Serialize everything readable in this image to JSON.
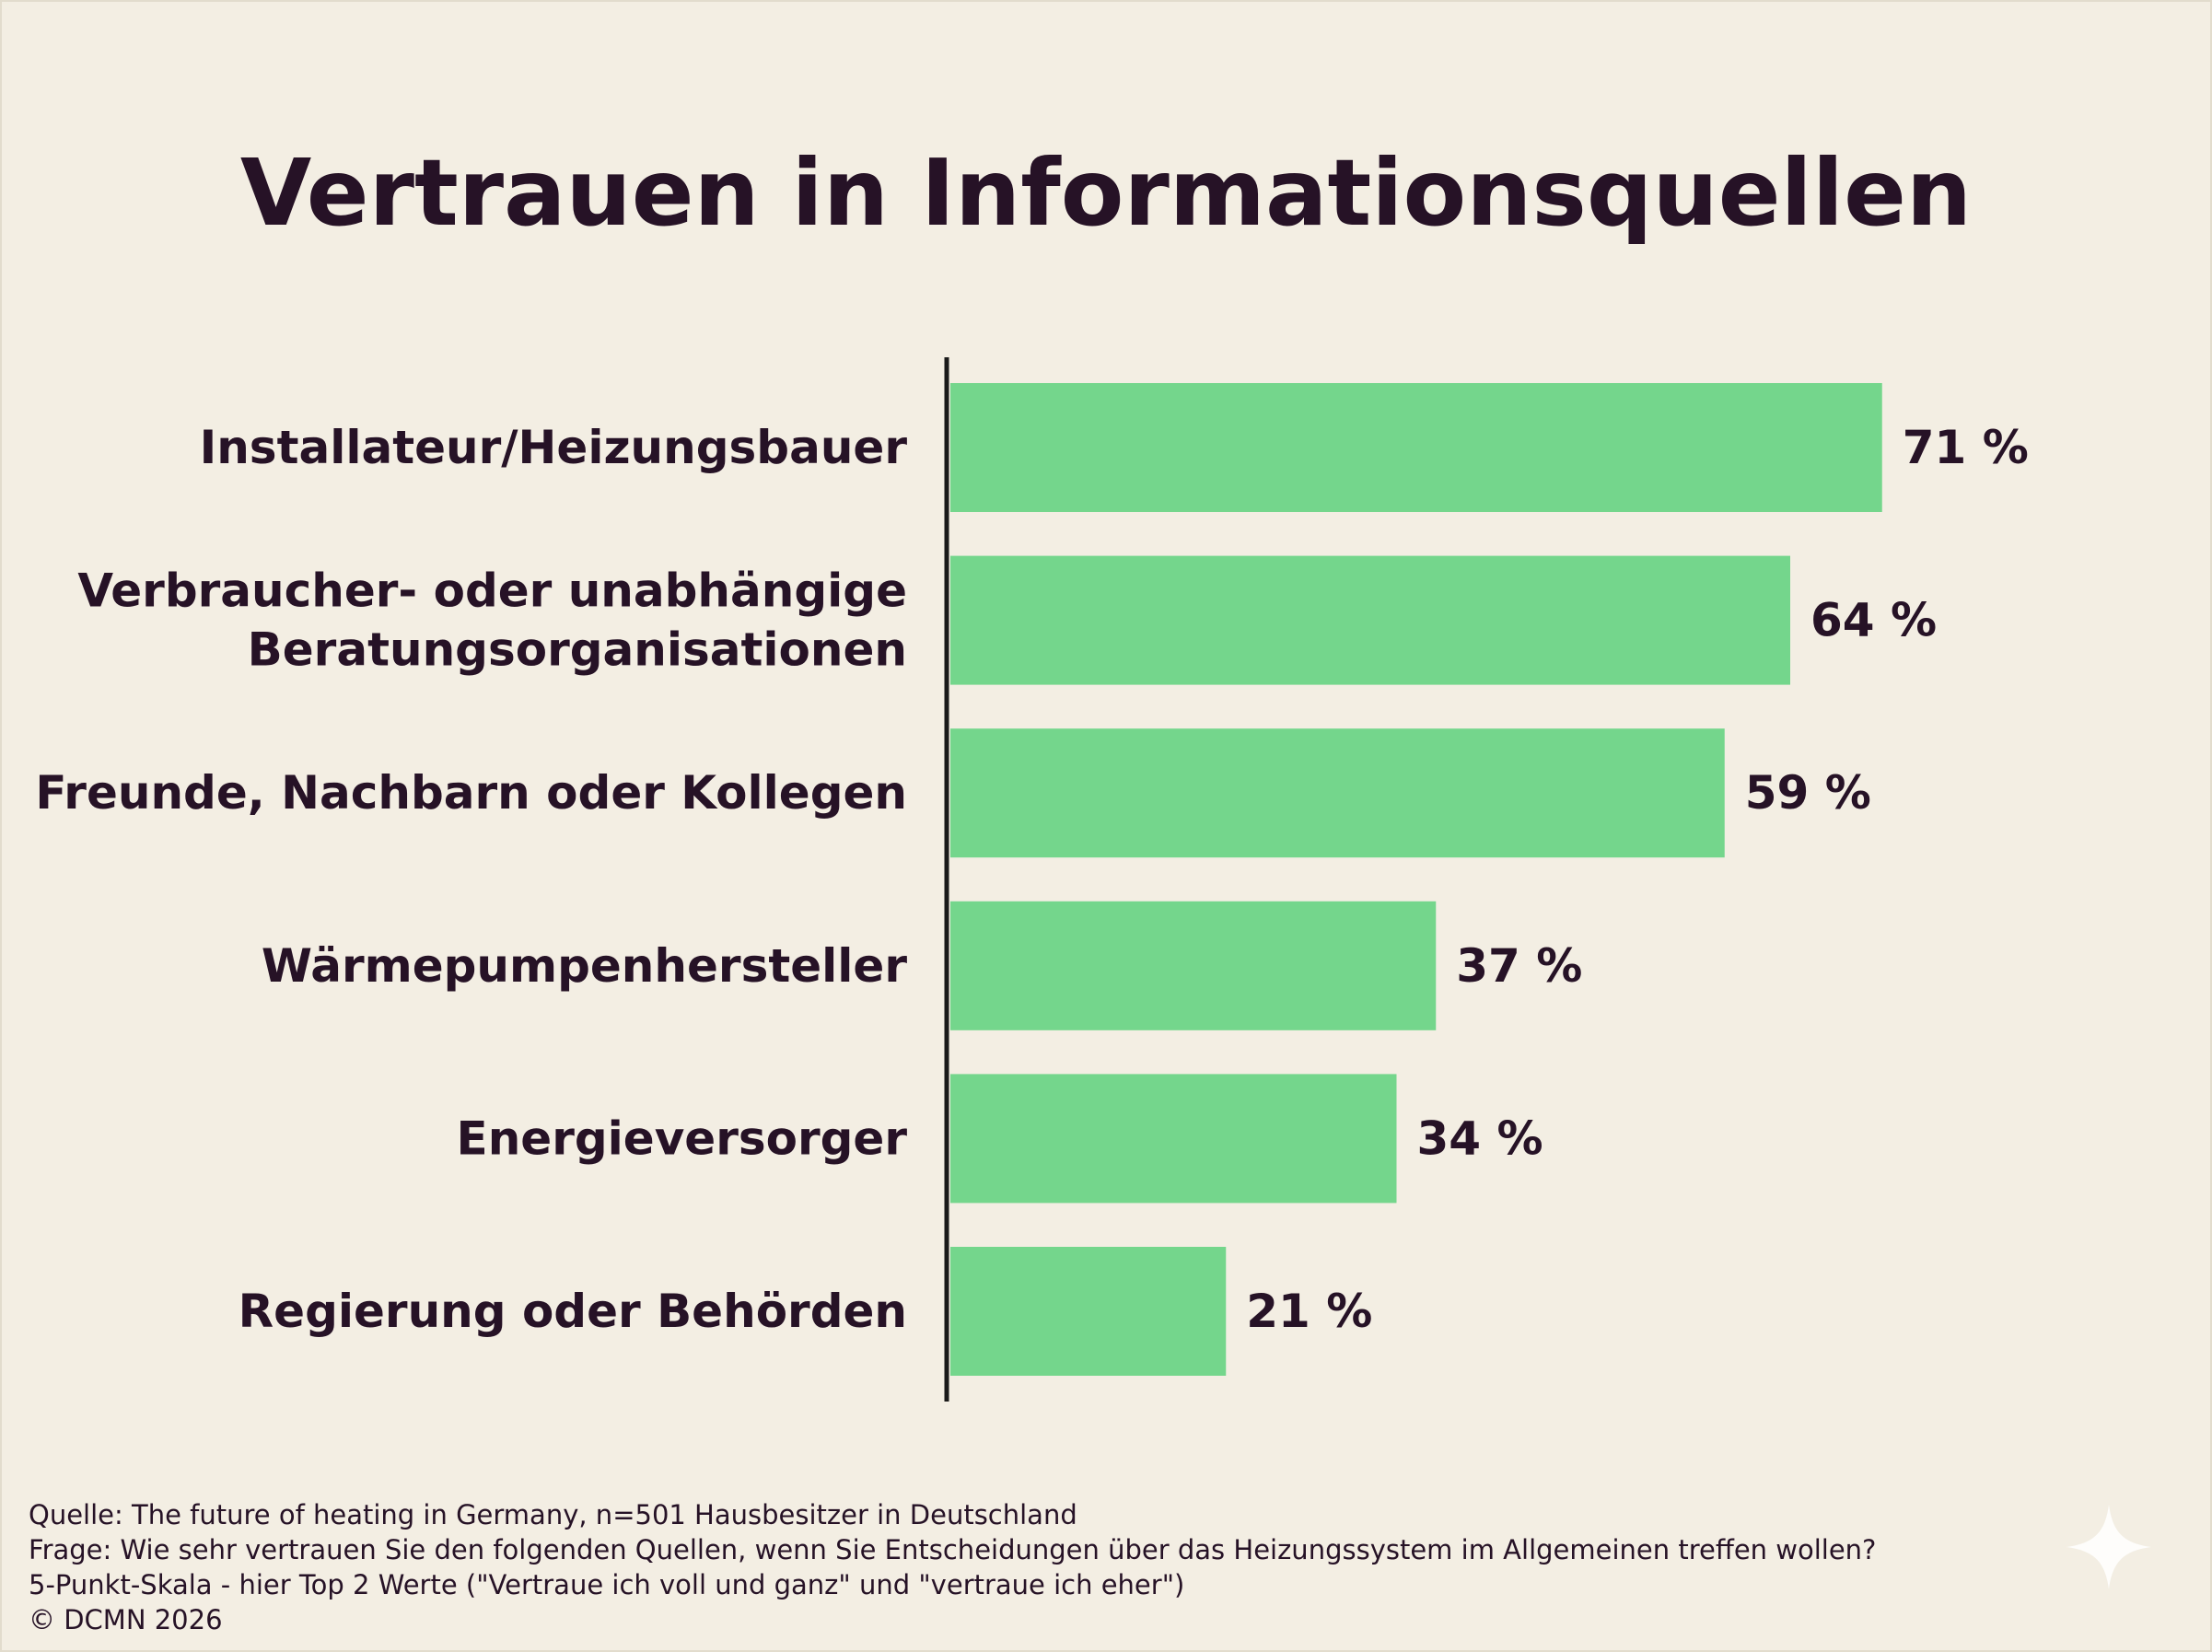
{
  "colors": {
    "background": "#f3eee3",
    "bar": "#74d68c",
    "text": "#261226",
    "axis": "#1a1a1a"
  },
  "chart_data": {
    "type": "bar",
    "orientation": "horizontal",
    "title": "Vertrauen in Informationsquellen",
    "categories": [
      "Installateur/Heizungsbauer",
      "Verbraucher- oder unabhängige Beratungsorganisationen",
      "Freunde, Nachbarn oder Kollegen",
      "Wärmepumpenhersteller",
      "Energieversorger",
      "Regierung oder Behörden"
    ],
    "category_lines": [
      [
        "Installateur/Heizungsbauer"
      ],
      [
        "Verbraucher- oder unabhängige",
        "Beratungsorganisationen"
      ],
      [
        "Freunde, Nachbarn oder Kollegen"
      ],
      [
        "Wärmepumpenhersteller"
      ],
      [
        "Energieversorger"
      ],
      [
        "Regierung oder Behörden"
      ]
    ],
    "values": [
      71,
      64,
      59,
      37,
      34,
      21
    ],
    "value_labels": [
      "71 %",
      "64 %",
      "59 %",
      "37 %",
      "34 %",
      "21 %"
    ],
    "unit": "%",
    "xlim": [
      0,
      100
    ],
    "grid": false,
    "legend": "none"
  },
  "footnote": {
    "source": "Quelle: The future of heating in Germany, n=501 Hausbesitzer in Deutschland",
    "question": "Frage: Wie sehr vertrauen Sie den folgenden Quellen, wenn Sie Entscheidungen über das Heizungssystem im Allgemeinen treffen wollen?",
    "scale": "5-Punkt-Skala - hier Top 2 Werte (\"Vertraue ich voll und ganz\" und \"vertraue ich eher\")",
    "copyright": "© DCMN 2026"
  },
  "icons": {
    "corner": "sparkle-icon"
  }
}
